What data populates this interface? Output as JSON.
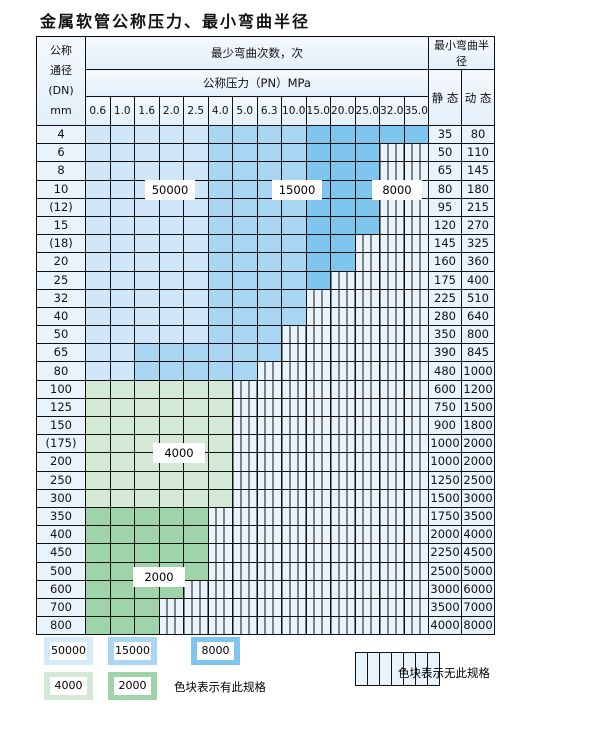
{
  "title": "金属软管公称压力、最小弯曲半径",
  "header": {
    "dn": [
      "公称",
      "通径",
      "(DN)",
      "mm"
    ],
    "cycles": "最少弯曲次数，次",
    "pressure": "公称压力（PN）MPa",
    "radius": "最小弯曲半径",
    "static": "静 态",
    "dynamic": "动 态",
    "pressures": [
      "0.6",
      "1.0",
      "1.6",
      "2.0",
      "2.5",
      "4.0",
      "5.0",
      "6.3",
      "10.0",
      "15.0",
      "20.0",
      "25.0",
      "32.0",
      "35.0"
    ]
  },
  "rows": [
    {
      "dn": "4",
      "cells": "LLLLLMMMMDDDDD",
      "s": "35",
      "d": "80"
    },
    {
      "dn": "6",
      "cells": "LLLLLMMMMDDDXX",
      "s": "50",
      "d": "110"
    },
    {
      "dn": "8",
      "cells": "LLLLLMMMMDDDXX",
      "s": "65",
      "d": "145"
    },
    {
      "dn": "10",
      "cells": "LLLLLMMMMDDDXX",
      "s": "80",
      "d": "180"
    },
    {
      "dn": "(12)",
      "cells": "LLLLLMMMMDDDXX",
      "s": "95",
      "d": "215"
    },
    {
      "dn": "15",
      "cells": "LLLLLMMMMDDDXX",
      "s": "120",
      "d": "270"
    },
    {
      "dn": "(18)",
      "cells": "LLLLLMMMMDDXXX",
      "s": "145",
      "d": "325"
    },
    {
      "dn": "20",
      "cells": "LLLLLMMMMDDXXX",
      "s": "160",
      "d": "360"
    },
    {
      "dn": "25",
      "cells": "LLLLLMMMMDXXXX",
      "s": "175",
      "d": "400"
    },
    {
      "dn": "32",
      "cells": "LLLLLMMMMXXXXX",
      "s": "225",
      "d": "510"
    },
    {
      "dn": "40",
      "cells": "LLLLLMMMMXXXXX",
      "s": "280",
      "d": "640"
    },
    {
      "dn": "50",
      "cells": "LLLLLMMMXXXXXX",
      "s": "350",
      "d": "800"
    },
    {
      "dn": "65",
      "cells": "LLMMMMMMXXXXXX",
      "s": "390",
      "d": "845"
    },
    {
      "dn": "80",
      "cells": "LLMMMMMXXXXXXX",
      "s": "480",
      "d": "1000"
    },
    {
      "dn": "100",
      "cells": "GGGGGGXXXXXXXX",
      "s": "600",
      "d": "1200"
    },
    {
      "dn": "125",
      "cells": "GGGGGGXXXXXXXX",
      "s": "750",
      "d": "1500"
    },
    {
      "dn": "150",
      "cells": "GGGGGGXXXXXXXX",
      "s": "900",
      "d": "1800"
    },
    {
      "dn": "(175)",
      "cells": "GGGGGGXXXXXXXX",
      "s": "1000",
      "d": "2000"
    },
    {
      "dn": "200",
      "cells": "GGGGGGXXXXXXXX",
      "s": "1000",
      "d": "2000"
    },
    {
      "dn": "250",
      "cells": "GGGGGGXXXXXXXX",
      "s": "1250",
      "d": "2500"
    },
    {
      "dn": "300",
      "cells": "GGGGGGXXXXXXXX",
      "s": "1500",
      "d": "3000"
    },
    {
      "dn": "350",
      "cells": "HHHHHXXXXXXXXX",
      "s": "1750",
      "d": "3500"
    },
    {
      "dn": "400",
      "cells": "HHHHHXXXXXXXXX",
      "s": "2000",
      "d": "4000"
    },
    {
      "dn": "450",
      "cells": "HHHHHXXXXXXXXX",
      "s": "2250",
      "d": "4500"
    },
    {
      "dn": "500",
      "cells": "HHHHHXXXXXXXXX",
      "s": "2500",
      "d": "5000"
    },
    {
      "dn": "600",
      "cells": "HHHHXXXXXXXXXX",
      "s": "3000",
      "d": "6000"
    },
    {
      "dn": "700",
      "cells": "HHHXXXXXXXXXXX",
      "s": "3500",
      "d": "7000"
    },
    {
      "dn": "800",
      "cells": "HHHXXXXXXXXXXX",
      "s": "4000",
      "d": "8000"
    }
  ],
  "region_labels": {
    "L": "50000",
    "M": "15000",
    "D": "8000",
    "G": "4000",
    "H": "2000"
  },
  "colors": {
    "L": "#cfe7f8",
    "M": "#a9d7f3",
    "D": "#7fc6ef",
    "G": "#d3e9d6",
    "H": "#9fd4aa",
    "X": "#e8f3fb"
  },
  "legend": {
    "available": "色块表示有此规格",
    "unavailable": "色块表示无此规格"
  }
}
